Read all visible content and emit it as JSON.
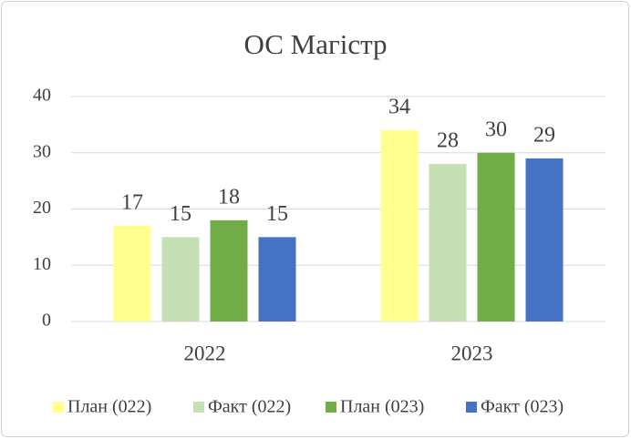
{
  "chart_data": {
    "type": "bar",
    "title": "ОС Магістр",
    "categories": [
      "2022",
      "2023"
    ],
    "series": [
      {
        "name": "План (022)",
        "color": "#ffff8f",
        "values": [
          17,
          34
        ]
      },
      {
        "name": "Факт (022)",
        "color": "#c5e0b4",
        "values": [
          15,
          28
        ]
      },
      {
        "name": "План (023)",
        "color": "#70ad47",
        "values": [
          18,
          30
        ]
      },
      {
        "name": "Факт (023)",
        "color": "#4472c4",
        "values": [
          15,
          29
        ]
      }
    ],
    "ylim": [
      0,
      40
    ],
    "yticks": [
      0,
      10,
      20,
      30,
      40
    ],
    "grid": true,
    "legend": "bottom"
  }
}
